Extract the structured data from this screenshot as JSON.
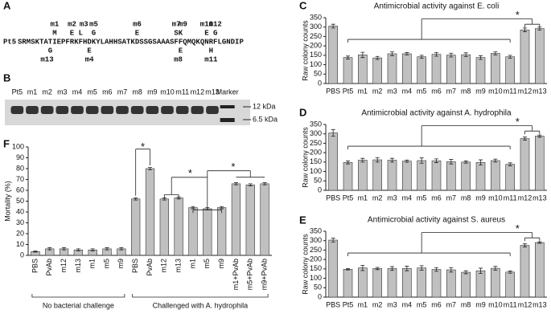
{
  "sequence_panel": {
    "panel": "A",
    "name": "Pt5",
    "sequence": "SRMSKTATIEPFRKFHDKYLAHHSATKDSSGSAAASFFQMQKQNRFLGNDIP",
    "mutations": [
      {
        "label": "m1",
        "residue": "M"
      },
      {
        "label": "m13",
        "residue": "G"
      },
      {
        "label": "m2",
        "residue": "E"
      },
      {
        "label": "m3",
        "residue": "L"
      },
      {
        "label": "m4",
        "residue": "E"
      },
      {
        "label": "m5",
        "residue": "G"
      },
      {
        "label": "m6",
        "residue": "E"
      },
      {
        "label": "m7",
        "residue": "S"
      },
      {
        "label": "m9",
        "residue": "K"
      },
      {
        "label": "m8",
        "residue": "E"
      },
      {
        "label": "m10",
        "residue": "E"
      },
      {
        "label": "m11",
        "residue": "H"
      },
      {
        "label": "m12",
        "residue": "G"
      }
    ]
  },
  "gel_panel": {
    "panel": "B",
    "lanes": [
      "Pt5",
      "m1",
      "m2",
      "m3",
      "m4",
      "m5",
      "m6",
      "m7",
      "m8",
      "m9",
      "m10",
      "m11",
      "m12",
      "m13",
      "Marker"
    ],
    "markers": [
      "12 kDa",
      "6.5 kDa"
    ]
  },
  "chart_data": [
    {
      "type": "bar",
      "panel": "C",
      "title": "Antimicrobial activity against E. coli",
      "y_label": "Raw colony counts",
      "categories": [
        "PBS",
        "Pt5",
        "m1",
        "m2",
        "m3",
        "m4",
        "m5",
        "m6",
        "m7",
        "m8",
        "m9",
        "m10",
        "m11",
        "m12",
        "m13"
      ],
      "values": [
        305,
        138,
        152,
        136,
        158,
        158,
        142,
        155,
        151,
        153,
        138,
        160,
        142,
        285,
        292
      ],
      "errors": [
        10,
        8,
        14,
        8,
        10,
        6,
        8,
        10,
        10,
        10,
        10,
        8,
        8,
        10,
        8
      ],
      "color": "#c0c0c0",
      "ylim": [
        0,
        350
      ],
      "yticks": [
        0,
        50,
        100,
        150,
        200,
        250,
        300,
        350
      ],
      "annotation": "*"
    },
    {
      "type": "bar",
      "panel": "D",
      "title": "Antimicrobial activity against A. hydrophila",
      "y_label": "Raw colony counts",
      "categories": [
        "PBS",
        "Pt5",
        "m1",
        "m2",
        "m3",
        "m4",
        "m5",
        "m6",
        "m7",
        "m8",
        "m9",
        "m10",
        "m11",
        "m12",
        "m13"
      ],
      "values": [
        305,
        148,
        160,
        162,
        160,
        155,
        158,
        157,
        152,
        150,
        148,
        158,
        138,
        275,
        288
      ],
      "errors": [
        18,
        8,
        10,
        12,
        10,
        6,
        14,
        10,
        12,
        6,
        14,
        8,
        8,
        8,
        6
      ],
      "color": "#c0c0c0",
      "ylim": [
        0,
        350
      ],
      "yticks": [
        0,
        50,
        100,
        150,
        200,
        250,
        300,
        350
      ],
      "annotation": "*"
    },
    {
      "type": "bar",
      "panel": "E",
      "title": "Antimicrobial activity against S. aureus",
      "y_label": "Raw colony counts",
      "categories": [
        "PBS",
        "Pt5",
        "m1",
        "m2",
        "m3",
        "m4",
        "m5",
        "m6",
        "m7",
        "m8",
        "m9",
        "m10",
        "m11",
        "m12",
        "m13"
      ],
      "values": [
        303,
        148,
        155,
        152,
        152,
        152,
        155,
        147,
        145,
        132,
        140,
        153,
        133,
        275,
        290
      ],
      "errors": [
        10,
        4,
        14,
        6,
        10,
        12,
        12,
        10,
        12,
        8,
        14,
        10,
        6,
        8,
        4
      ],
      "color": "#c0c0c0",
      "ylim": [
        0,
        350
      ],
      "yticks": [
        0,
        50,
        100,
        150,
        200,
        250,
        300,
        350
      ],
      "annotation": "*"
    },
    {
      "type": "bar",
      "panel": "F",
      "y_label": "Mortality (%)",
      "categories": [
        "PBS",
        "PvAb",
        "m12",
        "m13",
        "m1",
        "m5",
        "m9",
        "PBS",
        "PvAb",
        "m12",
        "m13",
        "m1",
        "m5",
        "m9",
        "m1+PvAb",
        "m5+PvAb",
        "m9+PvAb"
      ],
      "values": [
        3.5,
        6,
        6,
        5,
        5,
        6,
        6,
        52,
        80,
        52,
        53,
        44,
        43,
        44,
        66,
        65,
        66
      ],
      "errors": [
        0.5,
        1,
        1,
        1,
        1,
        1,
        1,
        1,
        1,
        1,
        1,
        1,
        1,
        1,
        1,
        1,
        1
      ],
      "color": "#c0c0c0",
      "ylim": [
        0,
        100
      ],
      "yticks": [
        0,
        10,
        20,
        30,
        40,
        50,
        60,
        70,
        80,
        90,
        100
      ],
      "groups": [
        "No bacterial challenge",
        "Challenged with A. hydrophila"
      ],
      "annotations": [
        "*",
        "*",
        "*"
      ]
    }
  ]
}
